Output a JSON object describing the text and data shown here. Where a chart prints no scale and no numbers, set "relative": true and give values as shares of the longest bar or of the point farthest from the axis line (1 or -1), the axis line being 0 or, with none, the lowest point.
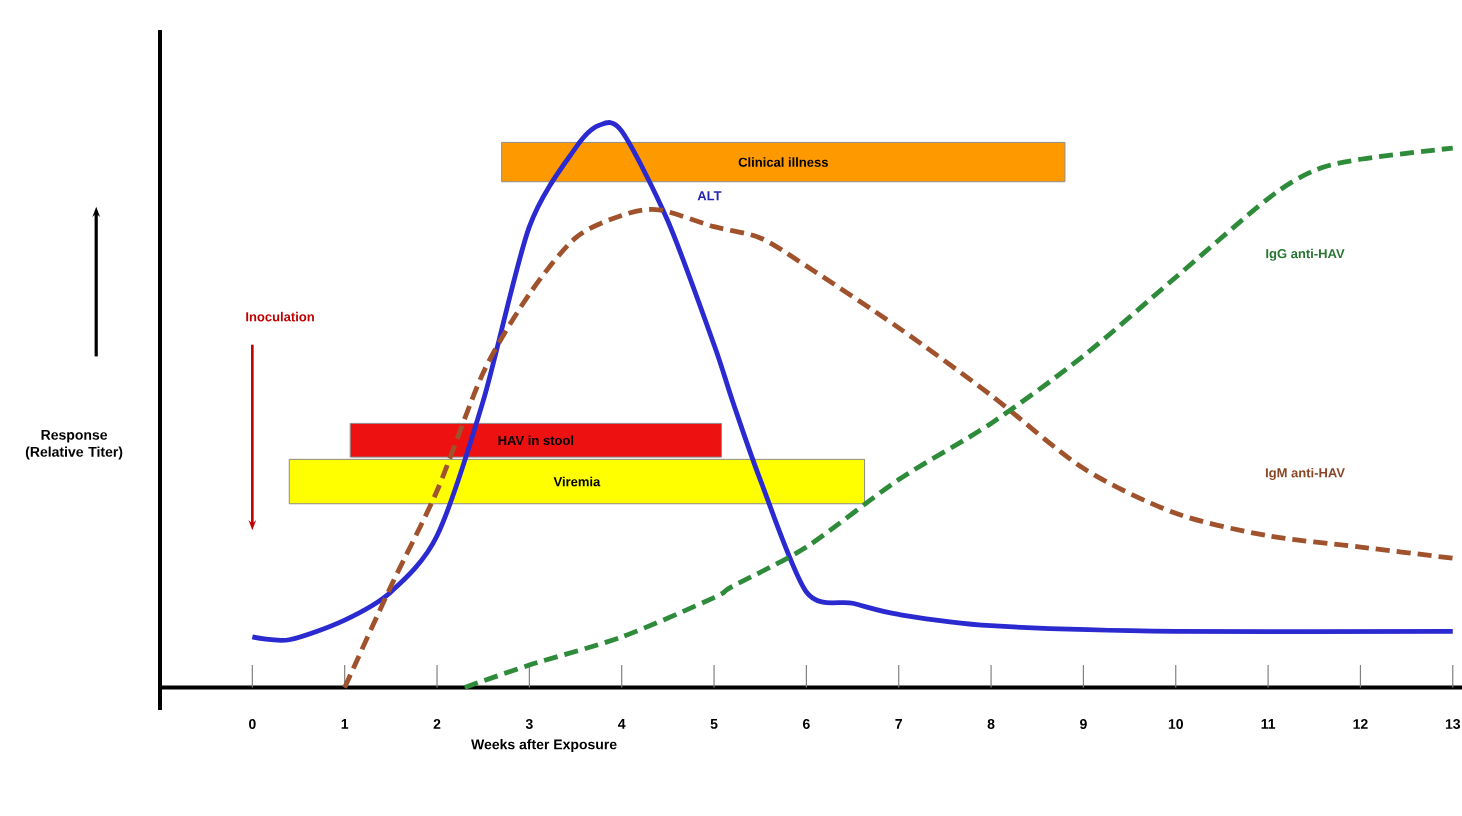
{
  "chart_data": {
    "type": "line",
    "relative": true,
    "xlabel": "Weeks after Exposure",
    "ylabel": "Response (Relative Titer)",
    "xlim": [
      -1,
      13.1
    ],
    "xticks": [
      0,
      1,
      2,
      3,
      4,
      5,
      6,
      7,
      8,
      9,
      10,
      11,
      12,
      13
    ],
    "legend": false,
    "grid": false,
    "marker": "none",
    "series": [
      {
        "name": "ALT",
        "color": "#2a2ad0",
        "line_style": "solid",
        "x": [
          0,
          0.4,
          1,
          1.5,
          2,
          2.5,
          3,
          3.5,
          3.75,
          4,
          4.5,
          5,
          5.2,
          5.5,
          6,
          6.5,
          7,
          8,
          10,
          13
        ],
        "values": [
          0.09,
          0.085,
          0.12,
          0.17,
          0.27,
          0.51,
          0.82,
          0.96,
          1.0,
          0.99,
          0.83,
          0.61,
          0.51,
          0.37,
          0.17,
          0.15,
          0.13,
          0.11,
          0.1,
          0.1
        ]
      },
      {
        "name": "IgM anti-HAV",
        "color": "#a0522d",
        "line_style": "dashed",
        "x": [
          1,
          1.5,
          2,
          2.5,
          3,
          3.5,
          4,
          4.4,
          5,
          5.5,
          6,
          7,
          8,
          9,
          10,
          11,
          12,
          13
        ],
        "values": [
          0,
          0.18,
          0.35,
          0.56,
          0.7,
          0.8,
          0.84,
          0.85,
          0.82,
          0.8,
          0.75,
          0.64,
          0.52,
          0.39,
          0.31,
          0.27,
          0.25,
          0.23
        ]
      },
      {
        "name": "IgG anti-HAV",
        "color": "#2e8b3a",
        "line_style": "dashed",
        "x": [
          2.3,
          3,
          4,
          5,
          5.2,
          6,
          7,
          8,
          9,
          10,
          11,
          11.5,
          12,
          13
        ],
        "values": [
          0,
          0.04,
          0.09,
          0.16,
          0.18,
          0.25,
          0.37,
          0.47,
          0.59,
          0.73,
          0.87,
          0.92,
          0.94,
          0.96
        ]
      }
    ],
    "bands": [
      {
        "axis": "x",
        "from": 2.7,
        "to": 8.8,
        "label": "Clinical illness",
        "color": "#ff9900"
      },
      {
        "axis": "x",
        "from": 1.06,
        "to": 5.08,
        "label": "HAV in stool",
        "color": "#ee1111"
      },
      {
        "axis": "x",
        "from": 0.4,
        "to": 6.63,
        "label": "Viremia",
        "color": "#ffff00"
      }
    ],
    "annotations": [
      "Inoculation"
    ]
  }
}
